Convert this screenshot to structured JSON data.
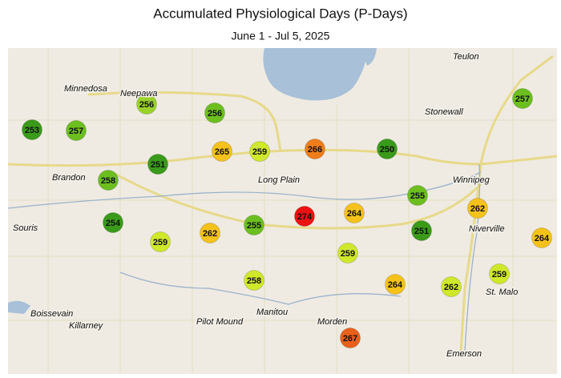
{
  "title": "Accumulated Physiological Days (P-Days)",
  "subtitle": "June 1 - Jul 5, 2025",
  "places": [
    "Teulon",
    "Minnedosa",
    "Neepawa",
    "Stonewall",
    "Winnipeg",
    "Long Plain",
    "Brandon",
    "Souris",
    "Niverville",
    "St. Malo",
    "Boissevain",
    "Killarney",
    "Pilot Mound",
    "Manitou",
    "Morden",
    "Emerson"
  ],
  "stations": [
    {
      "value": 253,
      "color": "#3a9a1a"
    },
    {
      "value": 257,
      "color": "#6cbf1f"
    },
    {
      "value": 256,
      "color": "#9ad22a"
    },
    {
      "value": 256,
      "color": "#6cbf1f"
    },
    {
      "value": 265,
      "color": "#f5c21a"
    },
    {
      "value": 259,
      "color": "#cfe82a"
    },
    {
      "value": 266,
      "color": "#ef7d1a"
    },
    {
      "value": 250,
      "color": "#3a9a1a"
    },
    {
      "value": 257,
      "color": "#6cbf1f"
    },
    {
      "value": 251,
      "color": "#3a9a1a"
    },
    {
      "value": 258,
      "color": "#6cbf1f"
    },
    {
      "value": 255,
      "color": "#6cbf1f"
    },
    {
      "value": 262,
      "color": "#f5c21a"
    },
    {
      "value": 274,
      "color": "#ee1111"
    },
    {
      "value": 264,
      "color": "#f5c21a"
    },
    {
      "value": 254,
      "color": "#3a9a1a"
    },
    {
      "value": 259,
      "color": "#cfe82a"
    },
    {
      "value": 262,
      "color": "#f5c21a"
    },
    {
      "value": 255,
      "color": "#6cbf1f"
    },
    {
      "value": 251,
      "color": "#3a9a1a"
    },
    {
      "value": 264,
      "color": "#f5c21a"
    },
    {
      "value": 259,
      "color": "#cfe82a"
    },
    {
      "value": 258,
      "color": "#cfe82a"
    },
    {
      "value": 264,
      "color": "#f5c21a"
    },
    {
      "value": 262,
      "color": "#cfe82a"
    },
    {
      "value": 259,
      "color": "#cfe82a"
    },
    {
      "value": 267,
      "color": "#e8601a"
    }
  ]
}
